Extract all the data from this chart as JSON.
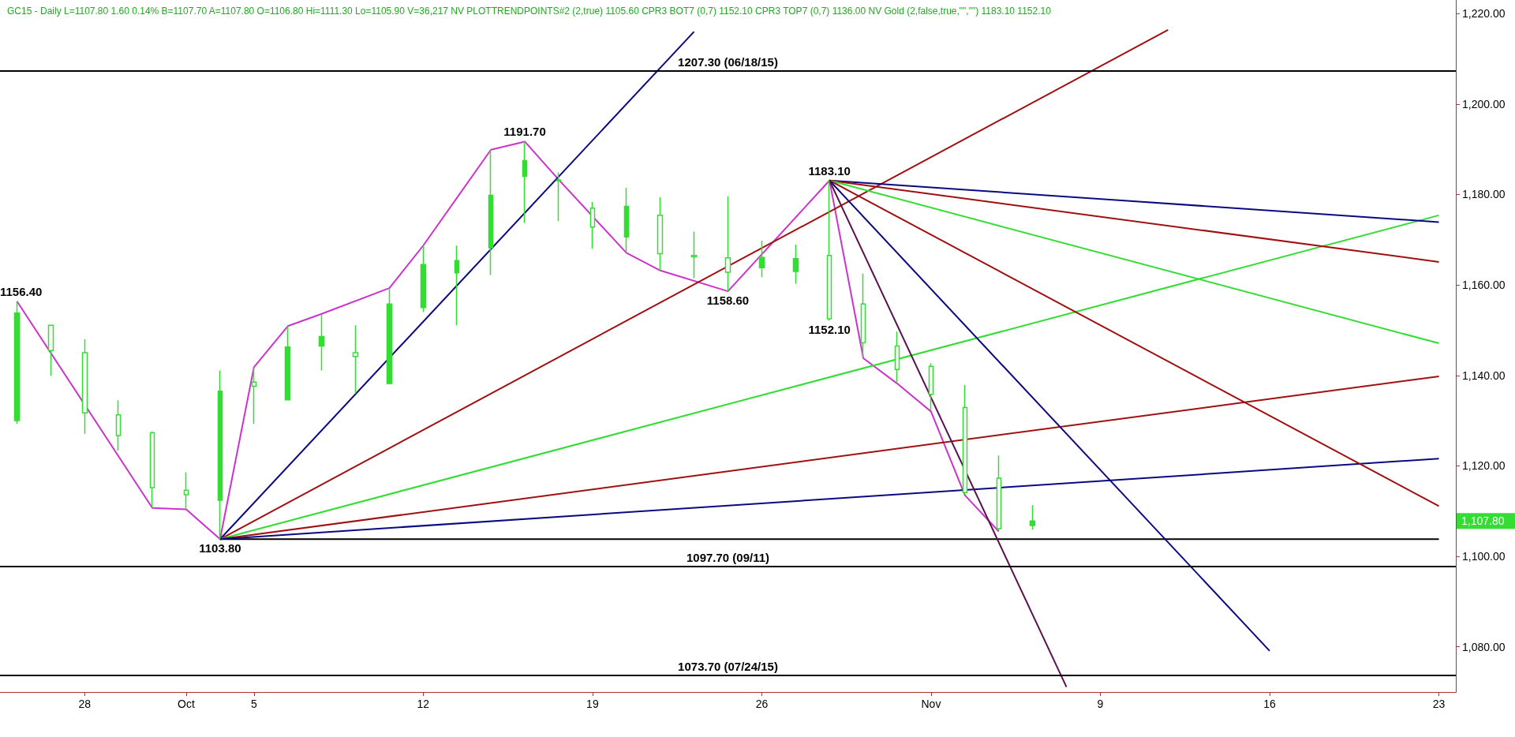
{
  "chart_data": {
    "type": "candlestick",
    "title": "GC15 - Daily L=1107.80 1.60 0.14% B=1107.70 A=1107.80 O=1106.80 Hi=1111.30 Lo=1105.90 V=36,217 NV PLOTTRENDPOINTS#2 (2,true) 1105.60 CPR3 BOT7 (0,7) 1152.10 CPR3 TOP7 (0,7) 1136.00 NV Gold (2,false,true,\"\",\"\") 1183.10 1152.10",
    "color": "#33dd33",
    "categories": [
      null,
      null,
      "28",
      null,
      null,
      "Oct",
      null,
      "5",
      null,
      null,
      null,
      null,
      "12",
      null,
      null,
      null,
      null,
      "19",
      null,
      null,
      null,
      null,
      "26",
      null,
      null,
      null,
      null,
      "Nov",
      null,
      null,
      null,
      null,
      "9",
      null,
      null,
      null,
      null,
      "16",
      null,
      null,
      null,
      null,
      "23"
    ],
    "ohlc": [
      [
        1130,
        1156.4,
        1129.3,
        1153.8
      ],
      [
        1151.1,
        1151.2,
        1139.9,
        1145.5
      ],
      [
        1145,
        1148,
        1127.1,
        1131.7
      ],
      [
        1131.3,
        1134.5,
        1123.4,
        1126.7
      ],
      [
        1127.3,
        1127.6,
        1110.9,
        1115.2
      ],
      [
        1114.6,
        1118.6,
        1110.5,
        1113.6
      ],
      [
        1112.4,
        1141.1,
        1103.8,
        1136.5
      ],
      [
        1138.5,
        1141.8,
        1129.3,
        1137.6
      ],
      [
        1134.6,
        1150.9,
        1134.5,
        1146.3
      ],
      [
        1146.5,
        1153.4,
        1141.1,
        1148.6
      ],
      [
        1145,
        1151.1,
        1136,
        1144.2
      ],
      [
        1138.2,
        1159.3,
        1138,
        1155.8
      ],
      [
        1155,
        1168.7,
        1154,
        1164.5
      ],
      [
        1162.7,
        1168.7,
        1151.1,
        1165.4
      ],
      [
        1168.2,
        1189.9,
        1162.2,
        1179.8
      ],
      [
        1184,
        1191.7,
        1173.7,
        1187.5
      ],
      [
        1183,
        1184.9,
        1174.1,
        1183.2
      ],
      [
        1177,
        1178.4,
        1168,
        1172.8
      ],
      [
        1170.6,
        1181.5,
        1167.3,
        1177.4
      ],
      [
        1175.4,
        1179.4,
        1163.2,
        1166.9
      ],
      [
        1166.5,
        1171.8,
        1161.5,
        1166.2
      ],
      [
        1166,
        1179.6,
        1158.6,
        1162.8
      ],
      [
        1163.8,
        1169.8,
        1161.7,
        1166.1
      ],
      [
        1163,
        1168.9,
        1160.3,
        1165.8
      ],
      [
        1166.5,
        1183.1,
        1152.1,
        1152.5
      ],
      [
        1155.8,
        1162.5,
        1143.8,
        1147.2
      ],
      [
        1146.5,
        1149.7,
        1138.5,
        1141.3
      ],
      [
        1142,
        1142.7,
        1132.3,
        1135.8
      ],
      [
        1132.9,
        1137.9,
        1113.6,
        1114.1
      ],
      [
        1117.3,
        1122.3,
        1105.8,
        1106.1
      ],
      [
        1106.8,
        1111.3,
        1105.9,
        1107.8
      ],
      null,
      null,
      null,
      null,
      null,
      null,
      null,
      null,
      null,
      null,
      null,
      null
    ],
    "series": [
      {
        "type": "line",
        "color": "#cc33cc",
        "values": [
          1156.4,
          null,
          null,
          null,
          1110.7,
          1110.4,
          1103.8,
          1141.8,
          1150.9,
          1153.6,
          null,
          1159.3,
          1168.7,
          null,
          1189.9,
          1191.7,
          1183.3,
          null,
          1167.1,
          1163.2,
          null,
          1158.6,
          null,
          null,
          1183.1,
          1143.8,
          1138.2,
          1132.0,
          1113.5,
          1105.5,
          null,
          null,
          null,
          null,
          null,
          null,
          null,
          null,
          null,
          null,
          null,
          null,
          null
        ]
      },
      {
        "type": "line",
        "color": "#000000",
        "values": [
          null,
          null,
          null,
          null,
          null,
          null,
          1103.8,
          null,
          null,
          null,
          null,
          null,
          null,
          null,
          null,
          null,
          null,
          null,
          null,
          null,
          null,
          null,
          null,
          null,
          null,
          null,
          null,
          null,
          null,
          null,
          null,
          null,
          null,
          null,
          null,
          null,
          null,
          null,
          null,
          null,
          null,
          null,
          1103.8
        ]
      },
      {
        "type": "line",
        "color": "#0a0a80",
        "values": [
          null,
          null,
          null,
          null,
          null,
          null,
          1103.8,
          null,
          null,
          null,
          null,
          null,
          null,
          null,
          null,
          null,
          null,
          null,
          null,
          null,
          1216,
          null,
          null,
          null,
          null,
          null,
          null,
          null,
          null,
          null,
          null,
          null,
          null,
          null,
          null,
          null,
          null,
          null,
          null,
          null,
          null,
          null,
          null
        ]
      },
      {
        "type": "line",
        "color": "#a01010",
        "values": [
          null,
          null,
          null,
          null,
          null,
          null,
          1103.8,
          null,
          null,
          null,
          null,
          null,
          null,
          null,
          null,
          null,
          null,
          null,
          null,
          null,
          null,
          null,
          null,
          null,
          null,
          null,
          null,
          null,
          null,
          null,
          null,
          null,
          null,
          null,
          1216.4,
          null,
          null,
          null,
          null,
          null,
          null,
          null,
          null
        ]
      },
      {
        "type": "line",
        "color": "#33dd33",
        "values": [
          null,
          null,
          null,
          null,
          null,
          null,
          1103.8,
          null,
          null,
          null,
          null,
          null,
          null,
          null,
          null,
          null,
          null,
          null,
          null,
          null,
          null,
          null,
          null,
          null,
          null,
          null,
          null,
          null,
          null,
          null,
          null,
          null,
          null,
          null,
          null,
          null,
          null,
          null,
          null,
          null,
          null,
          null,
          1175.4
        ]
      },
      {
        "type": "line",
        "color": "#a01010",
        "values": [
          null,
          null,
          null,
          null,
          null,
          null,
          1103.8,
          null,
          null,
          null,
          null,
          null,
          null,
          null,
          null,
          null,
          null,
          null,
          null,
          null,
          null,
          null,
          null,
          null,
          null,
          null,
          null,
          null,
          null,
          null,
          null,
          null,
          null,
          null,
          null,
          null,
          null,
          null,
          null,
          null,
          null,
          null,
          1139.8
        ]
      },
      {
        "type": "line",
        "color": "#0a0a80",
        "values": [
          null,
          null,
          null,
          null,
          null,
          null,
          1103.8,
          null,
          null,
          null,
          null,
          null,
          null,
          null,
          null,
          null,
          null,
          null,
          null,
          null,
          null,
          null,
          null,
          null,
          null,
          null,
          null,
          null,
          null,
          null,
          null,
          null,
          null,
          null,
          null,
          null,
          null,
          null,
          null,
          null,
          null,
          null,
          1121.6
        ]
      },
      {
        "type": "line",
        "color": "#0a0a80",
        "values": [
          null,
          null,
          null,
          null,
          null,
          null,
          null,
          null,
          null,
          null,
          null,
          null,
          null,
          null,
          null,
          null,
          null,
          null,
          null,
          null,
          null,
          null,
          null,
          null,
          1183.1,
          null,
          null,
          null,
          null,
          null,
          null,
          null,
          null,
          null,
          null,
          null,
          null,
          null,
          null,
          null,
          null,
          null,
          1173.9
        ]
      },
      {
        "type": "line",
        "color": "#a01010",
        "values": [
          null,
          null,
          null,
          null,
          null,
          null,
          null,
          null,
          null,
          null,
          null,
          null,
          null,
          null,
          null,
          null,
          null,
          null,
          null,
          null,
          null,
          null,
          null,
          null,
          1183.1,
          null,
          null,
          null,
          null,
          null,
          null,
          null,
          null,
          null,
          null,
          null,
          null,
          null,
          null,
          null,
          null,
          null,
          1165.1
        ]
      },
      {
        "type": "line",
        "color": "#33dd33",
        "values": [
          null,
          null,
          null,
          null,
          null,
          null,
          null,
          null,
          null,
          null,
          null,
          null,
          null,
          null,
          null,
          null,
          null,
          null,
          null,
          null,
          null,
          null,
          null,
          null,
          1183.1,
          null,
          null,
          null,
          null,
          null,
          null,
          null,
          null,
          null,
          null,
          null,
          null,
          null,
          null,
          null,
          null,
          null,
          1147.1
        ]
      },
      {
        "type": "line",
        "color": "#a01010",
        "values": [
          null,
          null,
          null,
          null,
          null,
          null,
          null,
          null,
          null,
          null,
          null,
          null,
          null,
          null,
          null,
          null,
          null,
          null,
          null,
          null,
          null,
          null,
          null,
          null,
          1183.1,
          null,
          null,
          null,
          null,
          null,
          null,
          null,
          null,
          null,
          null,
          null,
          null,
          null,
          null,
          null,
          null,
          null,
          1111.1
        ]
      },
      {
        "type": "line",
        "color": "#0a0a80",
        "values": [
          null,
          null,
          null,
          null,
          null,
          null,
          null,
          null,
          null,
          null,
          null,
          null,
          null,
          null,
          null,
          null,
          null,
          null,
          null,
          null,
          null,
          null,
          null,
          null,
          1183.1,
          null,
          null,
          null,
          null,
          null,
          null,
          null,
          null,
          null,
          null,
          null,
          null,
          1079.1,
          null,
          null,
          null,
          null,
          null
        ]
      },
      {
        "type": "line",
        "color": "#5a1050",
        "values": [
          null,
          null,
          null,
          null,
          null,
          null,
          null,
          null,
          null,
          null,
          null,
          null,
          null,
          null,
          null,
          null,
          null,
          null,
          null,
          null,
          null,
          null,
          null,
          null,
          1183.1,
          null,
          null,
          null,
          null,
          null,
          null,
          1071.1,
          null,
          null,
          null,
          null,
          null,
          null,
          null,
          null,
          null,
          null,
          null
        ]
      }
    ],
    "ylim": [
      1070,
      1223
    ],
    "yticks": [
      {
        "value": 1080,
        "label": "1,080.00"
      },
      {
        "value": 1100,
        "label": "1,100.00"
      },
      {
        "value": 1120,
        "label": "1,120.00"
      },
      {
        "value": 1140,
        "label": "1,140.00"
      },
      {
        "value": 1160,
        "label": "1,160.00"
      },
      {
        "value": 1180,
        "label": "1,180.00"
      },
      {
        "value": 1200,
        "label": "1,200.00"
      },
      {
        "value": 1220,
        "label": "1,220.00"
      }
    ],
    "ref_lines": [
      {
        "axis": "y",
        "value": 1207.3,
        "label": "1207.30 (06/18/15)",
        "color": "#000000"
      },
      {
        "axis": "y",
        "value": 1097.7,
        "label": "1097.70 (09/11)",
        "color": "#000000"
      },
      {
        "axis": "y",
        "value": 1073.7,
        "label": "1073.70 (07/24/15)",
        "color": "#000000"
      }
    ],
    "annotations": [
      {
        "text": "1156.40",
        "y": 1156.4
      },
      {
        "text": "1103.80",
        "y": 1103.8
      },
      {
        "text": "1191.70",
        "y": 1191.7
      },
      {
        "text": "1158.60",
        "y": 1158.6
      },
      {
        "text": "1183.10",
        "y": 1183.1
      },
      {
        "text": "1152.10",
        "y": 1152.1
      },
      "1,107.80"
    ],
    "marker": "none",
    "grid": false
  }
}
